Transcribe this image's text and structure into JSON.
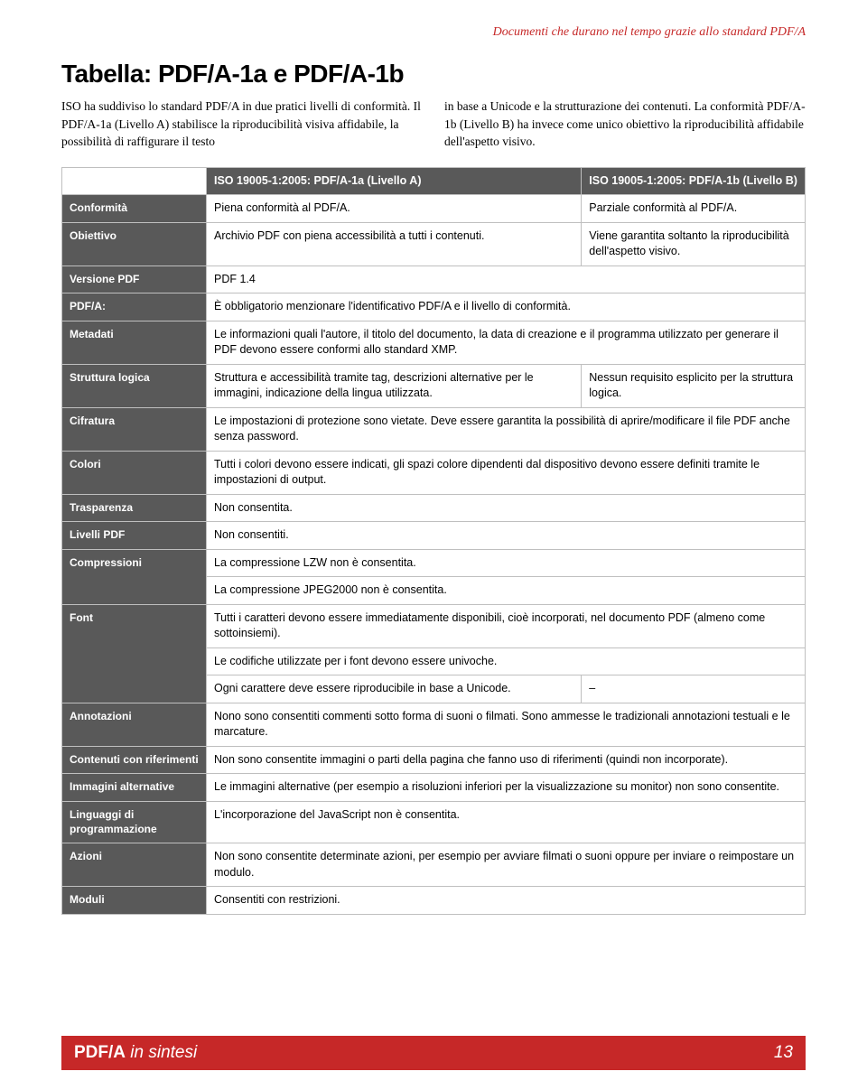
{
  "runningHeader": "Documenti che durano nel tempo grazie allo standard PDF/A",
  "title": "Tabella: PDF/A-1a e PDF/A-1b",
  "intro": {
    "left": "ISO ha suddiviso lo standard PDF/A in due pratici livelli di conformità. Il PDF/A-1a (Livello A) stabilisce la riproducibilità visiva affidabile, la possibilità di raffigurare il testo",
    "right": "in base a Unicode e la strutturazione dei contenuti. La conformità PDF/A-1b (Livello B) ha invece come unico obiettivo la riproducibilità affidabile dell'aspetto visivo."
  },
  "table": {
    "head": {
      "colA": "ISO 19005-1:2005: PDF/A-1a (Livello A)",
      "colB": "ISO 19005-1:2005: PDF/A-1b (Livello B)"
    },
    "rows": {
      "conformita": {
        "label": "Conformità",
        "a": "Piena conformità al PDF/A.",
        "b": "Parziale conformità al PDF/A."
      },
      "obiettivo": {
        "label": "Obiettivo",
        "a": "Archivio PDF con piena accessibilità a tutti i contenuti.",
        "b": "Viene garantita soltanto la riproducibilità dell'aspetto visivo."
      },
      "versione": {
        "label": "Versione PDF",
        "span": "PDF 1.4"
      },
      "pdfa": {
        "label": "PDF/A:",
        "span": "È obbligatorio menzionare l'identificativo PDF/A e il livello di conformità."
      },
      "metadati": {
        "label": "Metadati",
        "span": "Le informazioni quali l'autore, il titolo del documento, la data di creazione e il programma utilizzato per generare il PDF devono essere conformi allo standard XMP."
      },
      "struttura": {
        "label": "Struttura logica",
        "a": "Struttura e accessibilità tramite tag, descrizioni alternative per le immagini, indicazione della lingua utilizzata.",
        "b": "Nessun requisito esplicito per la struttura logica."
      },
      "cifratura": {
        "label": "Cifratura",
        "span": "Le impostazioni di protezione sono vietate. Deve essere garantita la possibilità di aprire/modificare il file PDF anche senza password."
      },
      "colori": {
        "label": "Colori",
        "span": "Tutti i colori devono essere indicati, gli spazi colore dipendenti dal dispositivo devono essere definiti tramite le impostazioni di output."
      },
      "trasparenza": {
        "label": "Trasparenza",
        "span": "Non consentita."
      },
      "livelli": {
        "label": "Livelli PDF",
        "span": "Non consentiti."
      },
      "compressioni": {
        "label": "Compressioni",
        "span": "La compressione LZW non è consentita."
      },
      "compressioni2": {
        "span": "La compressione JPEG2000 non è consentita."
      },
      "font": {
        "label": "Font",
        "span": "Tutti i caratteri devono essere immediatamente disponibili, cioè incorporati, nel documento PDF (almeno come sottoinsiemi)."
      },
      "font2": {
        "span": "Le codifiche utilizzate per i font devono essere univoche."
      },
      "font3": {
        "a": "Ogni carattere deve essere riproducibile in base a Unicode.",
        "b": "–"
      },
      "annotazioni": {
        "label": "Annotazioni",
        "span": "Nono sono consentiti commenti sotto forma di suoni o filmati. Sono ammesse le tradizionali annotazioni testuali e le marcature."
      },
      "contenutirif": {
        "label": "Contenuti con riferimenti",
        "span": "Non sono consentite immagini o parti della pagina che fanno uso di riferimenti (quindi non incorporate)."
      },
      "immaginialt": {
        "label": "Immagini alternative",
        "span": "Le immagini alternative (per esempio a risoluzioni inferiori per la visualizzazione su monitor) non sono consentite."
      },
      "linguaggi": {
        "label": "Linguaggi di programmazione",
        "span": "L'incorporazione del JavaScript non è consentita."
      },
      "azioni": {
        "label": "Azioni",
        "span": "Non sono consentite determinate azioni, per esempio per avviare filmati o suoni oppure per inviare o reimpostare un modulo."
      },
      "moduli": {
        "label": "Moduli",
        "span": "Consentiti con restrizioni."
      }
    }
  },
  "footer": {
    "titleBold": "PDF/A",
    "titleItalic": " in sintesi",
    "pageNum": "13"
  }
}
